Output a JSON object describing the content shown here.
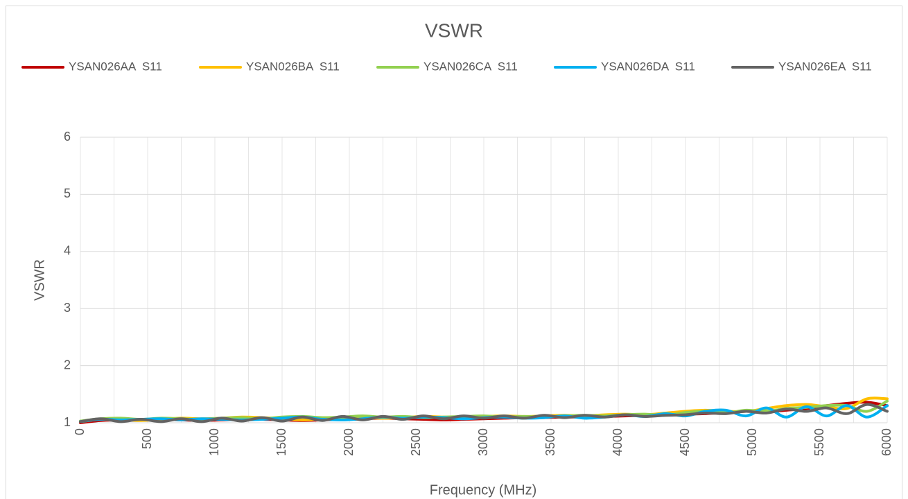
{
  "chart_data": {
    "type": "line",
    "title": "VSWR",
    "x_label": "Frequency (MHz)",
    "y_label": "VSWR",
    "x": [
      0,
      150,
      300,
      450,
      600,
      750,
      900,
      1050,
      1200,
      1350,
      1500,
      1650,
      1800,
      1950,
      2100,
      2250,
      2400,
      2550,
      2700,
      2850,
      3000,
      3150,
      3300,
      3450,
      3600,
      3750,
      3900,
      4050,
      4200,
      4350,
      4500,
      4650,
      4800,
      4950,
      5100,
      5250,
      5400,
      5550,
      5700,
      5850,
      6000
    ],
    "series": [
      {
        "name": "YSAN026AA  S11",
        "color": "#c00000",
        "values": [
          1.0,
          1.04,
          1.05,
          1.05,
          1.06,
          1.05,
          1.04,
          1.05,
          1.06,
          1.06,
          1.05,
          1.04,
          1.05,
          1.06,
          1.07,
          1.08,
          1.07,
          1.06,
          1.05,
          1.06,
          1.07,
          1.08,
          1.09,
          1.09,
          1.1,
          1.1,
          1.11,
          1.12,
          1.13,
          1.14,
          1.15,
          1.16,
          1.18,
          1.2,
          1.19,
          1.22,
          1.25,
          1.3,
          1.34,
          1.36,
          1.3
        ]
      },
      {
        "name": "YSAN026BA  S11",
        "color": "#ffc000",
        "values": [
          1.02,
          1.06,
          1.05,
          1.04,
          1.06,
          1.08,
          1.07,
          1.08,
          1.1,
          1.09,
          1.07,
          1.05,
          1.07,
          1.1,
          1.09,
          1.08,
          1.09,
          1.11,
          1.1,
          1.09,
          1.11,
          1.12,
          1.11,
          1.12,
          1.13,
          1.12,
          1.14,
          1.15,
          1.14,
          1.17,
          1.2,
          1.22,
          1.2,
          1.2,
          1.25,
          1.3,
          1.32,
          1.28,
          1.25,
          1.42,
          1.42
        ]
      },
      {
        "name": "YSAN026CA  S11",
        "color": "#92d050",
        "values": [
          1.03,
          1.07,
          1.08,
          1.06,
          1.08,
          1.07,
          1.06,
          1.08,
          1.09,
          1.07,
          1.1,
          1.11,
          1.09,
          1.1,
          1.12,
          1.1,
          1.11,
          1.09,
          1.1,
          1.11,
          1.12,
          1.1,
          1.11,
          1.1,
          1.12,
          1.13,
          1.12,
          1.14,
          1.15,
          1.13,
          1.18,
          1.2,
          1.17,
          1.22,
          1.2,
          1.25,
          1.27,
          1.3,
          1.3,
          1.2,
          1.38
        ]
      },
      {
        "name": "YSAN026DA  S11",
        "color": "#00b0f0",
        "values": [
          1.02,
          1.06,
          1.05,
          1.06,
          1.07,
          1.05,
          1.07,
          1.06,
          1.05,
          1.06,
          1.08,
          1.1,
          1.06,
          1.05,
          1.07,
          1.1,
          1.08,
          1.1,
          1.09,
          1.07,
          1.09,
          1.1,
          1.08,
          1.09,
          1.12,
          1.08,
          1.1,
          1.14,
          1.11,
          1.16,
          1.12,
          1.2,
          1.22,
          1.12,
          1.26,
          1.1,
          1.28,
          1.12,
          1.3,
          1.1,
          1.3
        ]
      },
      {
        "name": "YSAN026EA  S11",
        "color": "#636363",
        "values": [
          1.02,
          1.07,
          1.02,
          1.06,
          1.02,
          1.07,
          1.02,
          1.08,
          1.03,
          1.09,
          1.03,
          1.1,
          1.04,
          1.11,
          1.05,
          1.11,
          1.06,
          1.12,
          1.07,
          1.12,
          1.08,
          1.12,
          1.08,
          1.13,
          1.09,
          1.13,
          1.1,
          1.14,
          1.11,
          1.13,
          1.14,
          1.17,
          1.16,
          1.2,
          1.17,
          1.24,
          1.2,
          1.26,
          1.16,
          1.32,
          1.2
        ]
      }
    ],
    "xlim": [
      0,
      6000
    ],
    "xticks": [
      0,
      500,
      1000,
      1500,
      2000,
      2500,
      3000,
      3500,
      4000,
      4500,
      5000,
      5500,
      6000
    ],
    "xminorticks": [
      250,
      750,
      1250,
      1750,
      2250,
      2750,
      3250,
      3750,
      4250,
      4750,
      5250,
      5750
    ],
    "ylim": [
      1,
      6
    ],
    "yticks": [
      1,
      2,
      3,
      4,
      5,
      6
    ],
    "grid": true,
    "legend": "top"
  }
}
